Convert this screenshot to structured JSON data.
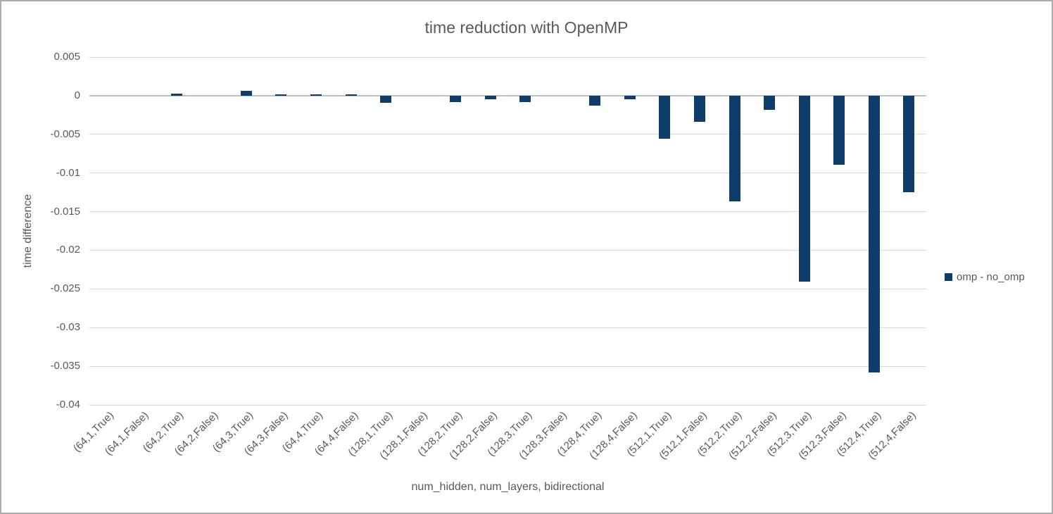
{
  "title": "time reduction with OpenMP",
  "legend": {
    "label": "omp - no_omp"
  },
  "colors": {
    "bar": "#0e3c6b",
    "gridline": "#d9d9d9",
    "zero_axis": "#c0c0c0",
    "text": "#595959"
  },
  "chart_data": {
    "type": "bar",
    "title": "time reduction with OpenMP",
    "xlabel": "num_hidden, num_layers, bidirectional",
    "ylabel": "time difference",
    "ylim": [
      -0.04,
      0.005
    ],
    "grid": true,
    "legend_position": "right",
    "yticks": [
      0.005,
      0,
      -0.005,
      -0.01,
      -0.015,
      -0.02,
      -0.025,
      -0.03,
      -0.035,
      -0.04
    ],
    "ytick_labels": [
      "0.005",
      "0",
      "-0.005",
      "-0.01",
      "-0.015",
      "-0.02",
      "-0.025",
      "-0.03",
      "-0.035",
      "-0.04"
    ],
    "categories": [
      "(64,1,True)",
      "(64,1,False)",
      "(64,2,True)",
      "(64,2,False)",
      "(64,3,True)",
      "(64,3,False)",
      "(64,4,True)",
      "(64,4,False)",
      "(128,1,True)",
      "(128,1,False)",
      "(128,2,True)",
      "(128,2,False)",
      "(128,3,True)",
      "(128,3,False)",
      "(128,4,True)",
      "(128,4,False)",
      "(512,1,True)",
      "(512,1,False)",
      "(512,2,True)",
      "(512,2,False)",
      "(512,3,True)",
      "(512,3,False)",
      "(512,4,True)",
      "(512,4,False)"
    ],
    "series": [
      {
        "name": "omp - no_omp",
        "values": [
          0,
          0,
          0.0003,
          0,
          0.0006,
          0.0002,
          0.0002,
          0.0002,
          -0.0009,
          0,
          -0.0008,
          -0.0005,
          -0.0008,
          0,
          -0.0013,
          -0.0005,
          -0.0056,
          -0.0034,
          -0.0137,
          -0.0018,
          -0.0241,
          -0.0089,
          -0.0358,
          -0.0125
        ]
      }
    ]
  }
}
